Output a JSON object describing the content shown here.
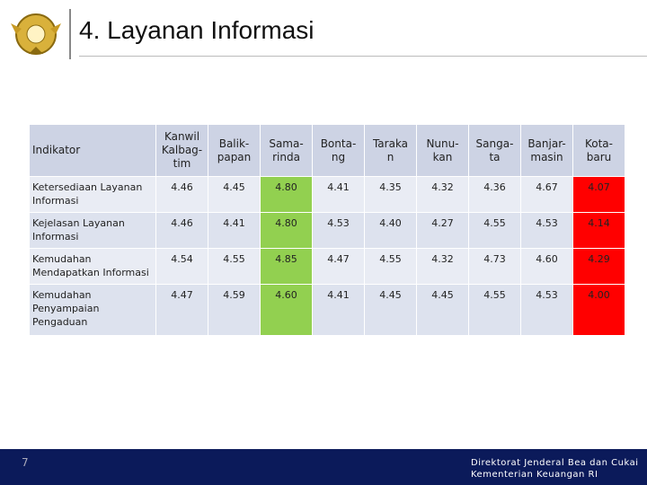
{
  "header": {
    "title": "4. Layanan Informasi"
  },
  "table": {
    "columns": [
      "Indikator",
      "Kanwil\nKalbag-\ntim",
      "Balik-\npapan",
      "Sama-\nrinda",
      "Bonta-\nng",
      "Taraka\nn",
      "Nunu-\nkan",
      "Sanga-\nta",
      "Banjar-\nmasin",
      "Kota-\nbaru"
    ],
    "rows": [
      [
        "Ketersediaan Layanan Informasi",
        "4.46",
        "4.45",
        "4.80",
        "4.41",
        "4.35",
        "4.32",
        "4.36",
        "4.67",
        "4.07"
      ],
      [
        "Kejelasan Layanan Informasi",
        "4.46",
        "4.41",
        "4.80",
        "4.53",
        "4.40",
        "4.27",
        "4.55",
        "4.53",
        "4.14"
      ],
      [
        "Kemudahan Mendapatkan Informasi",
        "4.54",
        "4.55",
        "4.85",
        "4.47",
        "4.55",
        "4.32",
        "4.73",
        "4.60",
        "4.29"
      ],
      [
        "Kemudahan Penyampaian Pengaduan",
        "4.47",
        "4.59",
        "4.60",
        "4.41",
        "4.45",
        "4.45",
        "4.55",
        "4.53",
        "4.00"
      ]
    ]
  },
  "footer": {
    "page": "7",
    "lines": [
      "Direktorat Jenderal Bea dan Cukai",
      "Kementerian Keuangan RI"
    ]
  }
}
